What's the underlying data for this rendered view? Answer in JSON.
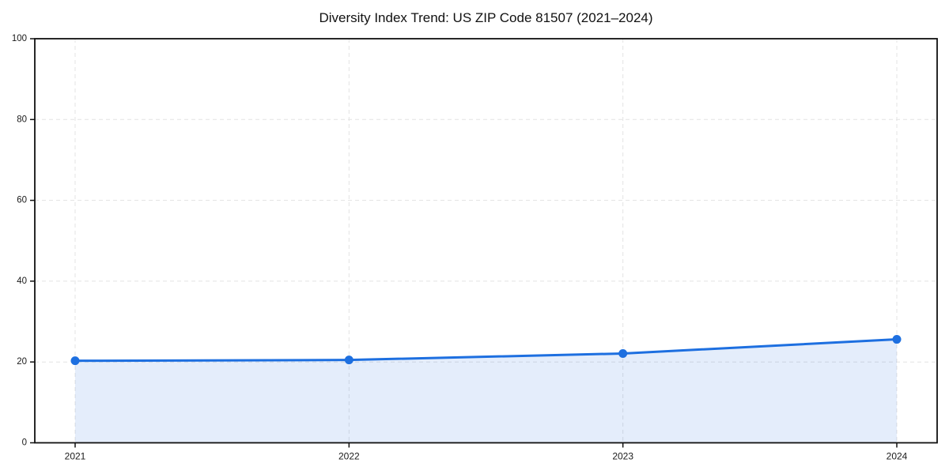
{
  "page": {
    "background_color": "#ffffff"
  },
  "chart_data": {
    "type": "area",
    "title": "Diversity Index Trend: US ZIP Code 81507 (2021–2024)",
    "categories": [
      "2021",
      "2022",
      "2023",
      "2024"
    ],
    "values": [
      20.3,
      20.5,
      22.1,
      25.6
    ],
    "xlabel": "",
    "ylabel": "",
    "ylim": [
      0,
      100
    ],
    "yticks": [
      0,
      20,
      40,
      60,
      80,
      100
    ],
    "grid": "on",
    "grid_style": "dashed",
    "legend_position": "none",
    "marker": "circle",
    "colors": {
      "line": "#1d6fe0",
      "marker": "#1d6fe0",
      "fill": "rgba(31,111,224,0.12)",
      "grid": "#e3e3e3",
      "axis_frame": "#111111",
      "tick_mark": "#111111",
      "tick_label": "#1a1a1a",
      "title": "#111111",
      "background": "#ffffff"
    }
  }
}
